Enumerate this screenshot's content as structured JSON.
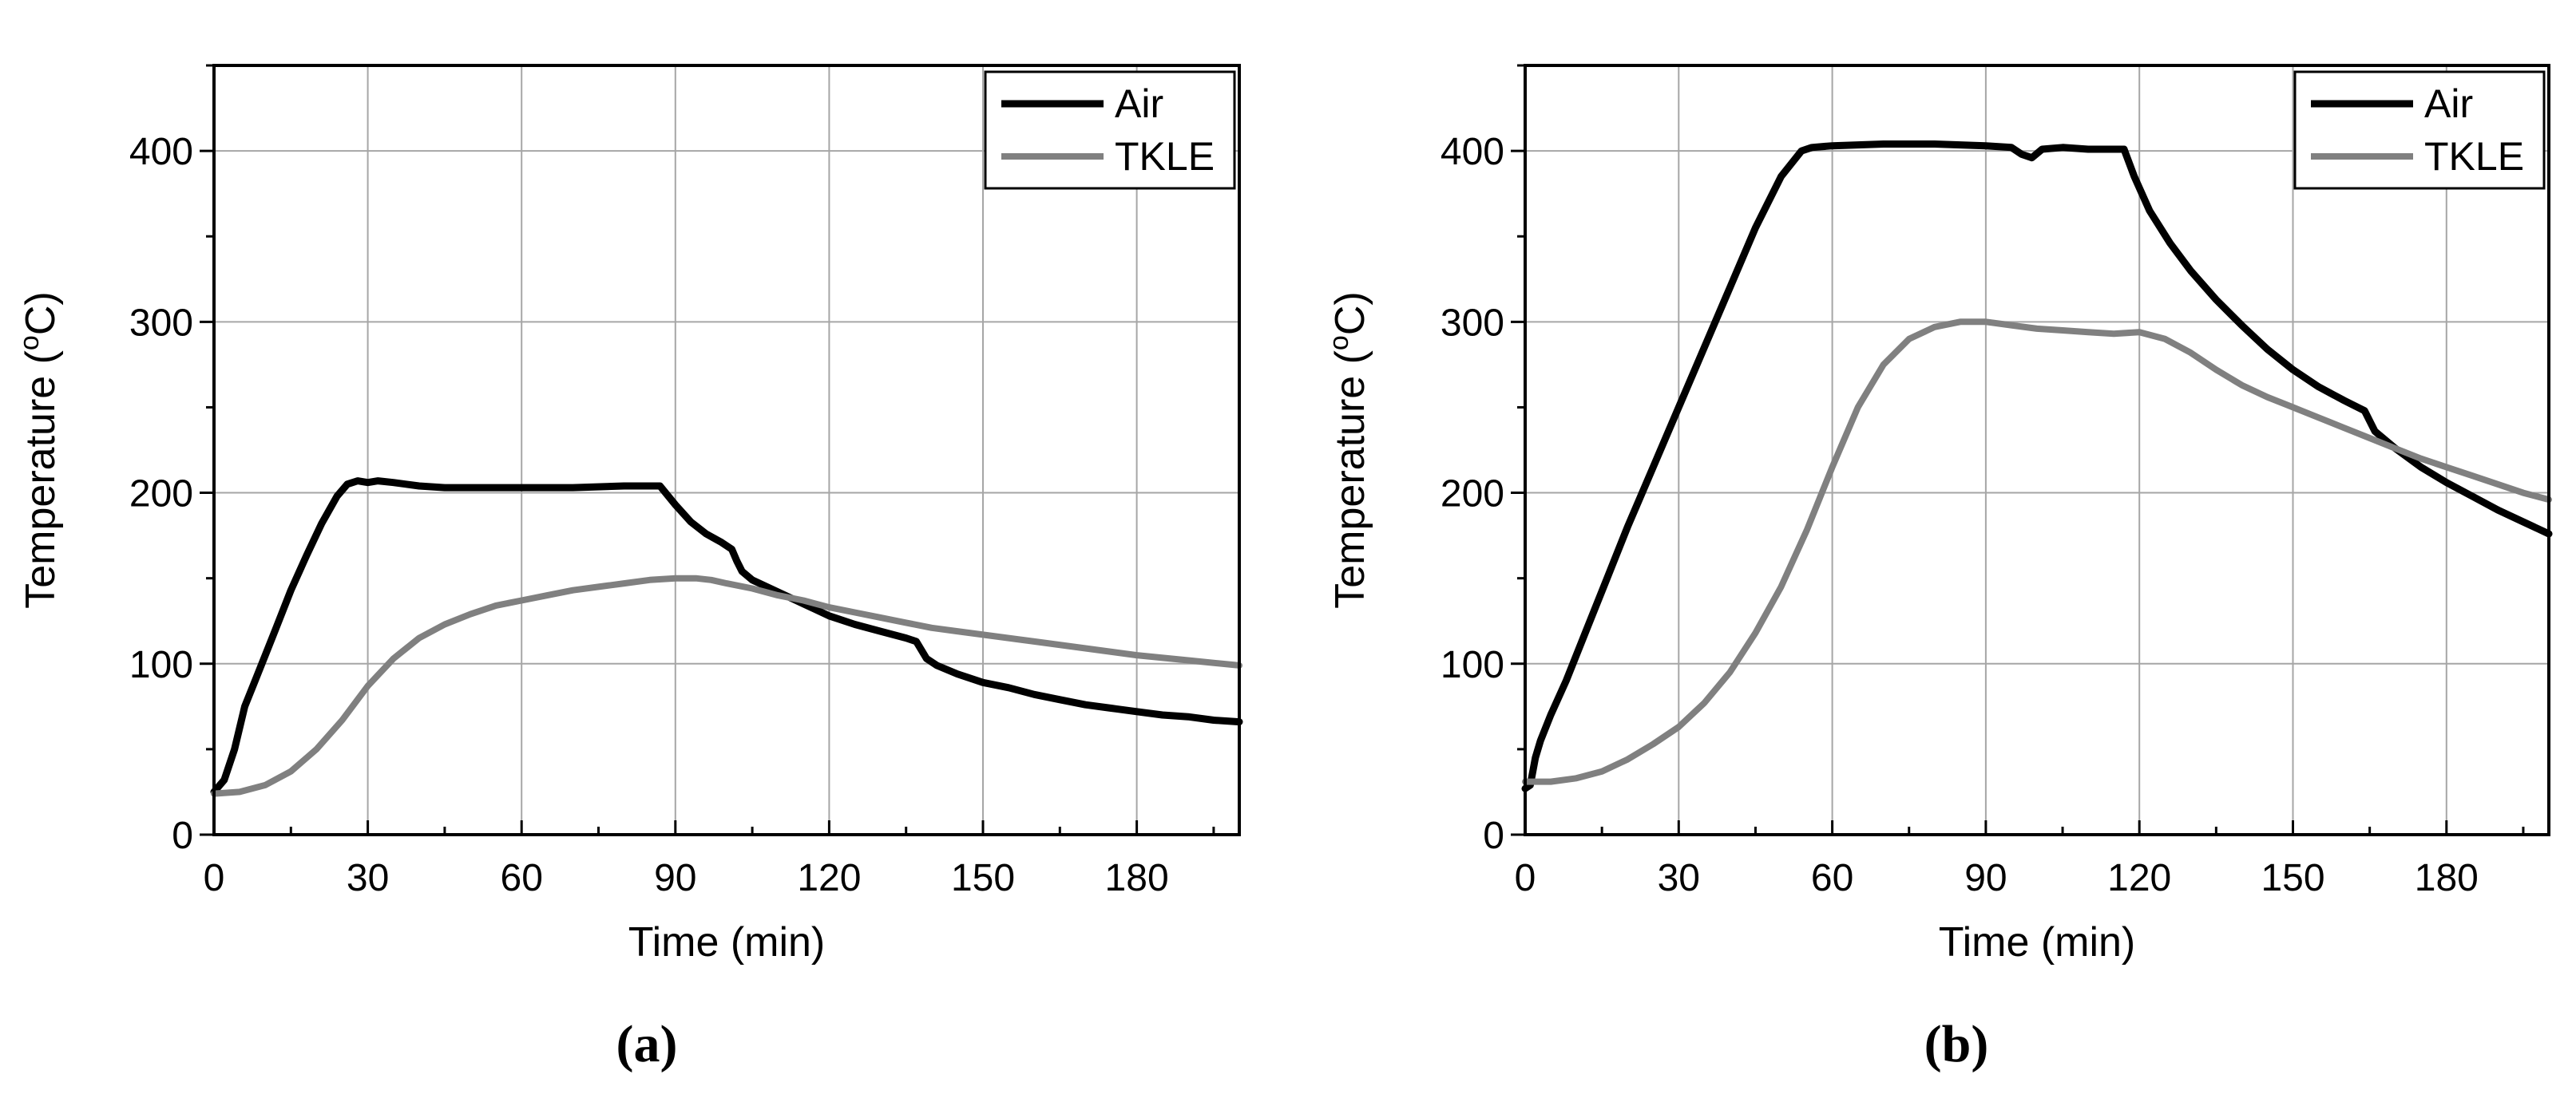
{
  "chart_data": [
    {
      "type": "line",
      "panel_label": "(a)",
      "xlabel": "Time (min)",
      "ylabel_main": "Temperature (",
      "ylabel_sup": "o",
      "ylabel_end": "C)",
      "xlim": [
        0,
        200
      ],
      "ylim": [
        0,
        450
      ],
      "xticks": [
        0,
        30,
        60,
        90,
        120,
        150,
        180
      ],
      "yticks": [
        0,
        100,
        200,
        300,
        400
      ],
      "grid": true,
      "legend_position": "top-right",
      "series": [
        {
          "name": "Air",
          "color": "#000000",
          "points": [
            [
              0,
              25
            ],
            [
              2,
              32
            ],
            [
              4,
              50
            ],
            [
              6,
              75
            ],
            [
              8,
              90
            ],
            [
              10,
              105
            ],
            [
              12,
              120
            ],
            [
              15,
              143
            ],
            [
              18,
              163
            ],
            [
              21,
              182
            ],
            [
              24,
              198
            ],
            [
              26,
              205
            ],
            [
              28,
              207
            ],
            [
              30,
              206
            ],
            [
              32,
              207
            ],
            [
              35,
              206
            ],
            [
              40,
              204
            ],
            [
              45,
              203
            ],
            [
              50,
              203
            ],
            [
              60,
              203
            ],
            [
              70,
              203
            ],
            [
              80,
              204
            ],
            [
              87,
              204
            ],
            [
              90,
              193
            ],
            [
              93,
              183
            ],
            [
              96,
              176
            ],
            [
              99,
              171
            ],
            [
              101,
              167
            ],
            [
              102,
              160
            ],
            [
              103,
              154
            ],
            [
              105,
              149
            ],
            [
              110,
              142
            ],
            [
              115,
              135
            ],
            [
              120,
              128
            ],
            [
              125,
              123
            ],
            [
              130,
              119
            ],
            [
              135,
              115
            ],
            [
              137,
              113
            ],
            [
              139,
              103
            ],
            [
              141,
              99
            ],
            [
              145,
              94
            ],
            [
              150,
              89
            ],
            [
              155,
              86
            ],
            [
              160,
              82
            ],
            [
              165,
              79
            ],
            [
              170,
              76
            ],
            [
              175,
              74
            ],
            [
              180,
              72
            ],
            [
              185,
              70
            ],
            [
              190,
              69
            ],
            [
              195,
              67
            ],
            [
              200,
              66
            ]
          ]
        },
        {
          "name": "TKLE",
          "color": "#808080",
          "points": [
            [
              0,
              24
            ],
            [
              5,
              25
            ],
            [
              10,
              29
            ],
            [
              15,
              37
            ],
            [
              20,
              50
            ],
            [
              25,
              67
            ],
            [
              30,
              87
            ],
            [
              35,
              103
            ],
            [
              40,
              115
            ],
            [
              45,
              123
            ],
            [
              50,
              129
            ],
            [
              55,
              134
            ],
            [
              60,
              137
            ],
            [
              65,
              140
            ],
            [
              70,
              143
            ],
            [
              75,
              145
            ],
            [
              80,
              147
            ],
            [
              85,
              149
            ],
            [
              90,
              150
            ],
            [
              94,
              150
            ],
            [
              97,
              149
            ],
            [
              100,
              147
            ],
            [
              105,
              144
            ],
            [
              110,
              140
            ],
            [
              115,
              137
            ],
            [
              120,
              133
            ],
            [
              125,
              130
            ],
            [
              130,
              127
            ],
            [
              135,
              124
            ],
            [
              140,
              121
            ],
            [
              145,
              119
            ],
            [
              150,
              117
            ],
            [
              160,
              113
            ],
            [
              170,
              109
            ],
            [
              180,
              105
            ],
            [
              190,
              102
            ],
            [
              200,
              99
            ]
          ]
        }
      ]
    },
    {
      "type": "line",
      "panel_label": "(b)",
      "xlabel": "Time (min)",
      "ylabel_main": "Temperature (",
      "ylabel_sup": "o",
      "ylabel_end": "C)",
      "xlim": [
        0,
        200
      ],
      "ylim": [
        0,
        450
      ],
      "xticks": [
        0,
        30,
        60,
        90,
        120,
        150,
        180
      ],
      "yticks": [
        0,
        100,
        200,
        300,
        400
      ],
      "grid": true,
      "legend_position": "top-right",
      "series": [
        {
          "name": "Air",
          "color": "#000000",
          "points": [
            [
              0,
              27
            ],
            [
              1,
              29
            ],
            [
              2,
              45
            ],
            [
              3,
              55
            ],
            [
              5,
              70
            ],
            [
              8,
              90
            ],
            [
              12,
              120
            ],
            [
              16,
              150
            ],
            [
              20,
              180
            ],
            [
              25,
              215
            ],
            [
              30,
              250
            ],
            [
              35,
              285
            ],
            [
              40,
              320
            ],
            [
              45,
              355
            ],
            [
              50,
              385
            ],
            [
              54,
              400
            ],
            [
              56,
              402
            ],
            [
              60,
              403
            ],
            [
              70,
              404
            ],
            [
              80,
              404
            ],
            [
              90,
              403
            ],
            [
              95,
              402
            ],
            [
              97,
              398
            ],
            [
              99,
              396
            ],
            [
              101,
              401
            ],
            [
              105,
              402
            ],
            [
              110,
              401
            ],
            [
              117,
              401
            ],
            [
              119,
              385
            ],
            [
              122,
              365
            ],
            [
              126,
              346
            ],
            [
              130,
              330
            ],
            [
              135,
              313
            ],
            [
              140,
              298
            ],
            [
              145,
              284
            ],
            [
              150,
              272
            ],
            [
              155,
              262
            ],
            [
              160,
              254
            ],
            [
              164,
              248
            ],
            [
              166,
              236
            ],
            [
              170,
              226
            ],
            [
              175,
              215
            ],
            [
              180,
              206
            ],
            [
              185,
              198
            ],
            [
              190,
              190
            ],
            [
              195,
              183
            ],
            [
              200,
              176
            ]
          ]
        },
        {
          "name": "TKLE",
          "color": "#808080",
          "points": [
            [
              0,
              31
            ],
            [
              5,
              31
            ],
            [
              10,
              33
            ],
            [
              15,
              37
            ],
            [
              20,
              44
            ],
            [
              25,
              53
            ],
            [
              30,
              63
            ],
            [
              35,
              77
            ],
            [
              40,
              95
            ],
            [
              45,
              118
            ],
            [
              50,
              145
            ],
            [
              55,
              178
            ],
            [
              60,
              215
            ],
            [
              65,
              250
            ],
            [
              70,
              275
            ],
            [
              75,
              290
            ],
            [
              80,
              297
            ],
            [
              85,
              300
            ],
            [
              90,
              300
            ],
            [
              95,
              298
            ],
            [
              100,
              296
            ],
            [
              105,
              295
            ],
            [
              110,
              294
            ],
            [
              115,
              293
            ],
            [
              120,
              294
            ],
            [
              125,
              290
            ],
            [
              130,
              282
            ],
            [
              135,
              272
            ],
            [
              140,
              263
            ],
            [
              145,
              256
            ],
            [
              150,
              250
            ],
            [
              155,
              244
            ],
            [
              160,
              238
            ],
            [
              165,
              232
            ],
            [
              170,
              226
            ],
            [
              175,
              220
            ],
            [
              180,
              215
            ],
            [
              185,
              210
            ],
            [
              190,
              205
            ],
            [
              195,
              200
            ],
            [
              200,
              196
            ]
          ]
        }
      ]
    }
  ]
}
